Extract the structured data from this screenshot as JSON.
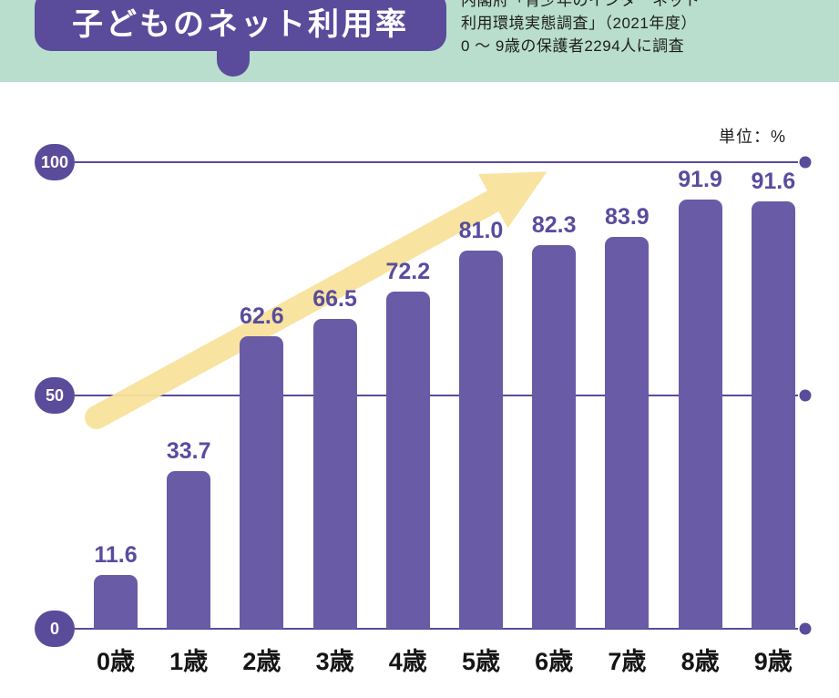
{
  "header": {
    "title": "子どものネット利用率",
    "badge_color": "#5a4b9b",
    "band_color": "#b9decd",
    "source_lines": [
      "内閣府「青少年のインターネット",
      "利用環境実態調査」（2021年度）",
      "0 〜 9歳の保護者2294人に調査"
    ]
  },
  "chart_data": {
    "type": "bar",
    "title": "子どものネット利用率",
    "unit_label": "単位：%",
    "categories": [
      "0歳",
      "1歳",
      "2歳",
      "3歳",
      "4歳",
      "5歳",
      "6歳",
      "7歳",
      "8歳",
      "9歳"
    ],
    "values": [
      11.6,
      33.7,
      62.6,
      66.5,
      72.2,
      81.0,
      82.3,
      83.9,
      91.9,
      91.6
    ],
    "ylim": [
      0,
      100
    ],
    "yticks": [
      0,
      50,
      100
    ],
    "bar_color": "#6a5ba6",
    "axis_color": "#5a4b9b",
    "value_label_color": "#584c9e",
    "arrow_color": "#f8e29b",
    "grid": true,
    "legend": "none",
    "annotation": "upward-trend-arrow"
  }
}
